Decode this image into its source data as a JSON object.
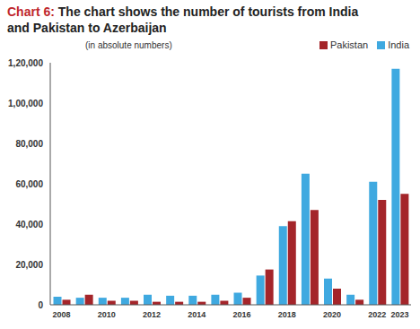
{
  "chart_data": {
    "type": "bar",
    "title": "Chart 6: The chart shows the number of tourists from India and Pakistan to Azerbaijan",
    "subtitle": "(in absolute numbers)",
    "categories": [
      "2008",
      null,
      "2010",
      null,
      "2012",
      null,
      "2014",
      null,
      "2016",
      null,
      "2018",
      null,
      "2020",
      null,
      "2022",
      "2023"
    ],
    "series": [
      {
        "name": "India",
        "color": "#3fa9e0",
        "values": [
          4000,
          3500,
          3500,
          3500,
          5000,
          4500,
          4500,
          5000,
          6000,
          14500,
          39000,
          65000,
          13000,
          5000,
          61000,
          117000
        ]
      },
      {
        "name": "Pakistan",
        "color": "#a4252a",
        "values": [
          2500,
          5000,
          2000,
          2000,
          1500,
          1500,
          1500,
          2000,
          3500,
          17500,
          41500,
          47000,
          8000,
          2500,
          52000,
          55000
        ]
      }
    ],
    "ylim": [
      0,
      120000
    ],
    "yticks": [
      0,
      {
        "value": 20000,
        "label": "20,000"
      },
      {
        "value": 40000,
        "label": "40,000"
      },
      {
        "value": 60000,
        "label": "60,000"
      },
      {
        "value": 80000,
        "label": "80,000"
      },
      {
        "value": 100000,
        "label": "1,00,000"
      },
      {
        "value": 120000,
        "label": "1,20,000"
      }
    ],
    "grid": false,
    "legend": "upper right"
  }
}
